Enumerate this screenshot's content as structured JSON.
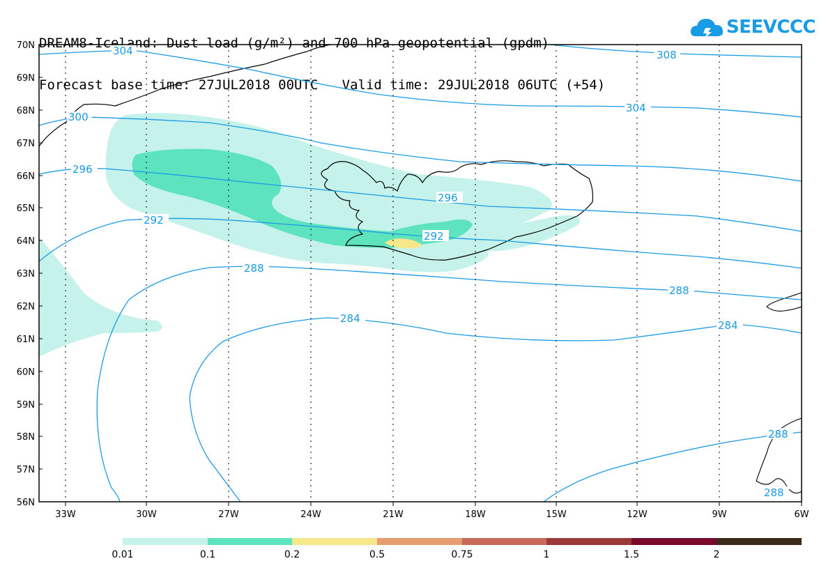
{
  "title": {
    "line1": "DREAM8-Iceland: Dust load (g/m²) and 700 hPa geopotential (gpdm)",
    "line2": "Forecast base time: 27JUL2018 00UTC   Valid time: 29JUL2018 06UTC (+54)"
  },
  "logo": {
    "text": "SEEVCCC",
    "icon": "cloud-icon",
    "color": "#1a9be6"
  },
  "map": {
    "lat_ticks": [
      "70N",
      "69N",
      "68N",
      "67N",
      "66N",
      "65N",
      "64N",
      "63N",
      "62N",
      "61N",
      "60N",
      "59N",
      "58N",
      "57N",
      "56N"
    ],
    "lon_ticks": [
      "33W",
      "30W",
      "27W",
      "24W",
      "21W",
      "18W",
      "15W",
      "12W",
      "9W",
      "6W"
    ],
    "contour_color": "#1a9be6",
    "contour_labels": [
      "304",
      "308",
      "304",
      "300",
      "296",
      "296",
      "292",
      "292",
      "288",
      "288",
      "284",
      "284",
      "288",
      "288"
    ]
  },
  "legend": {
    "colors": [
      "#c5f2ea",
      "#5de3bd",
      "#f6e88a",
      "#e89c72",
      "#c86a5a",
      "#9a3a38",
      "#7a0a2a",
      "#3e2a1a",
      "#9a74a6"
    ],
    "labels": [
      "0.01",
      "0.1",
      "0.2",
      "0.5",
      "0.75",
      "1",
      "1.5",
      "2"
    ]
  }
}
